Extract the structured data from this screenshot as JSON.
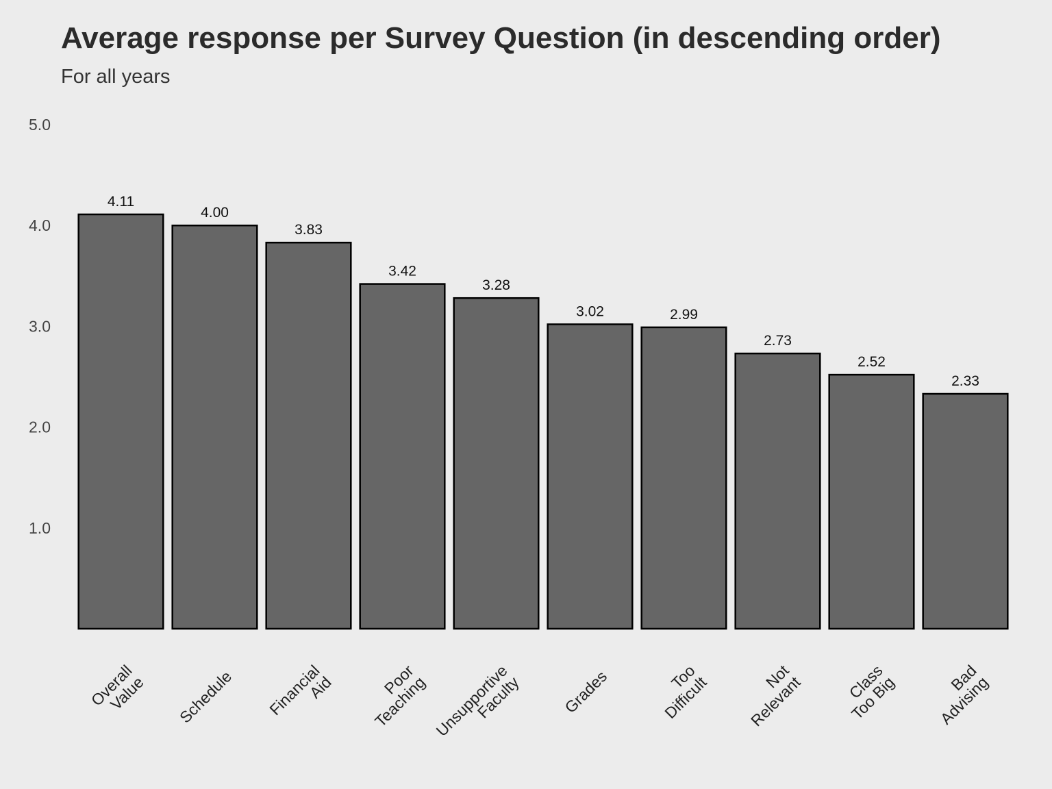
{
  "chart_data": {
    "type": "bar",
    "title": "Average response per Survey Question (in descending order)",
    "subtitle": "For all years",
    "xlabel": "",
    "ylabel": "",
    "categories": [
      "Overall Value",
      "Schedule",
      "Financial Aid",
      "Poor Teaching",
      "Unsupportive Faculty",
      "Grades",
      "Too Difficult",
      "Not Relevant",
      "Class Too Big",
      "Bad Advising"
    ],
    "category_label_lines": [
      [
        "Overall",
        "Value"
      ],
      [
        "Schedule"
      ],
      [
        "Financial",
        "Aid"
      ],
      [
        "Poor",
        "Teaching"
      ],
      [
        "Unsupportive",
        "Faculty"
      ],
      [
        "Grades"
      ],
      [
        "Too",
        "Difficult"
      ],
      [
        "Not",
        "Relevant"
      ],
      [
        "Class",
        "Too Big"
      ],
      [
        "Bad",
        "Advising"
      ]
    ],
    "values": [
      4.11,
      4.0,
      3.83,
      3.42,
      3.28,
      3.02,
      2.99,
      2.73,
      2.52,
      2.33
    ],
    "value_labels": [
      "4.11",
      "4.00",
      "3.83",
      "3.42",
      "3.28",
      "3.02",
      "2.99",
      "2.73",
      "2.52",
      "2.33"
    ],
    "yticks": [
      1.0,
      2.0,
      3.0,
      4.0,
      5.0
    ],
    "ytick_labels": [
      "1.0",
      "2.0",
      "3.0",
      "4.0",
      "5.0"
    ],
    "ylim": [
      0,
      5
    ],
    "grid": false,
    "legend": "none",
    "colors": {
      "background": "#ececec",
      "bar_fill": "#666666",
      "bar_stroke": "#000000"
    }
  }
}
